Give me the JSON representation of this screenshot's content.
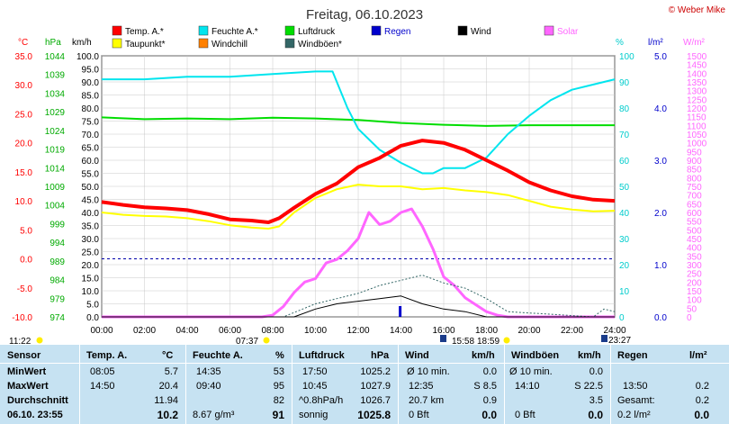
{
  "title": "Freitag, 06.10.2023",
  "copyright": "© Weber Mike",
  "legend": [
    {
      "label": "Temp. A.*",
      "color": "#ff0000"
    },
    {
      "label": "Feuchte A.*",
      "color": "#00e5ee"
    },
    {
      "label": "Luftdruck",
      "color": "#00dd00"
    },
    {
      "label": "Regen",
      "color": "#0000cc"
    },
    {
      "label": "Wind",
      "color": "#000000"
    },
    {
      "label": "Solar",
      "color": "#ff66ff"
    },
    {
      "label": "Taupunkt*",
      "color": "#ffff00"
    },
    {
      "label": "Windchill",
      "color": "#ff8000"
    },
    {
      "label": "Windböen*",
      "color": "#336666"
    }
  ],
  "axis_units": {
    "temp": "°C",
    "press": "hPa",
    "wind": "km/h",
    "hum": "%",
    "rain": "l/m²",
    "solar": "W/m²"
  },
  "chart_data": {
    "type": "line",
    "x_range": [
      0,
      24
    ],
    "x_ticks": [
      "00:00",
      "02:00",
      "04:00",
      "06:00",
      "08:00",
      "10:00",
      "12:00",
      "14:00",
      "16:00",
      "18:00",
      "20:00",
      "22:00",
      "24:00"
    ],
    "axes": {
      "temp": {
        "range": [
          -10,
          35
        ],
        "ticks": [
          "-10.0",
          "-5.0",
          "0.0",
          "5.0",
          "10.0",
          "15.0",
          "20.0",
          "25.0",
          "30.0",
          "35.0"
        ]
      },
      "pressure": {
        "range": [
          974,
          1044
        ],
        "ticks": [
          "974",
          "979",
          "984",
          "989",
          "994",
          "999",
          "1004",
          "1009",
          "1014",
          "1019",
          "1024",
          "1029",
          "1034",
          "1039",
          "1044"
        ]
      },
      "wind": {
        "range": [
          0,
          100
        ],
        "ticks": [
          "0.0",
          "5.0",
          "10.0",
          "15.0",
          "20.0",
          "25.0",
          "30.0",
          "35.0",
          "40.0",
          "45.0",
          "50.0",
          "55.0",
          "60.0",
          "65.0",
          "70.0",
          "75.0",
          "80.0",
          "85.0",
          "90.0",
          "95.0",
          "100.0"
        ]
      },
      "humidity": {
        "range": [
          0,
          100
        ],
        "ticks": [
          "0",
          "10",
          "20",
          "30",
          "40",
          "50",
          "60",
          "70",
          "80",
          "90",
          "100"
        ]
      },
      "rain": {
        "range": [
          0,
          5
        ],
        "ticks": [
          "0.0",
          "1.0",
          "2.0",
          "3.0",
          "4.0",
          "5.0"
        ]
      },
      "solar": {
        "range": [
          0,
          1500
        ],
        "ticks": [
          "0",
          "50",
          "100",
          "150",
          "200",
          "250",
          "300",
          "350",
          "400",
          "450",
          "500",
          "550",
          "600",
          "650",
          "700",
          "750",
          "800",
          "850",
          "900",
          "950",
          "1000",
          "1050",
          "1100",
          "1150",
          "1200",
          "1250",
          "1300",
          "1350",
          "1400",
          "1450",
          "1500"
        ]
      }
    },
    "series": [
      {
        "name": "Temp. A.*",
        "axis": "temp",
        "x": [
          0,
          1,
          2,
          3,
          4,
          5,
          6,
          7,
          7.8,
          8.3,
          9,
          10,
          11,
          12,
          13,
          14,
          15,
          16,
          17,
          18,
          19,
          20,
          21,
          22,
          23,
          24
        ],
        "y": [
          9.8,
          9.3,
          8.9,
          8.7,
          8.4,
          7.7,
          6.8,
          6.6,
          6.3,
          7.0,
          8.8,
          11.2,
          13.0,
          15.8,
          17.4,
          19.5,
          20.4,
          20.0,
          18.8,
          17.0,
          15.2,
          13.2,
          11.8,
          10.8,
          10.2,
          10.0
        ]
      },
      {
        "name": "Taupunkt*",
        "axis": "temp",
        "x": [
          0,
          1,
          2,
          3,
          4,
          5,
          6,
          7,
          7.8,
          8.3,
          9,
          10,
          11,
          12,
          13,
          14,
          15,
          16,
          17,
          18,
          19,
          20,
          21,
          22,
          23,
          24
        ],
        "y": [
          8.0,
          7.6,
          7.4,
          7.3,
          7.0,
          6.5,
          5.8,
          5.4,
          5.2,
          5.6,
          8.0,
          10.5,
          12.0,
          12.8,
          12.5,
          12.5,
          12.0,
          12.2,
          11.8,
          11.5,
          11.0,
          10.0,
          9.0,
          8.5,
          8.2,
          8.3
        ]
      },
      {
        "name": "Feuchte A.*",
        "axis": "humidity",
        "x": [
          0,
          2,
          4,
          6,
          8,
          10,
          10.8,
          11.5,
          12,
          13,
          14,
          15,
          15.5,
          16,
          17,
          18,
          19,
          20,
          21,
          22,
          23,
          24
        ],
        "y": [
          91,
          91,
          92,
          92,
          93,
          94,
          94,
          80,
          72,
          64,
          59,
          55,
          55,
          57,
          57,
          61,
          70,
          77,
          83,
          87,
          89,
          91
        ]
      },
      {
        "name": "Luftdruck",
        "axis": "pressure",
        "x": [
          0,
          2,
          4,
          6,
          8,
          10,
          12,
          14,
          16,
          18,
          20,
          22,
          24
        ],
        "y": [
          1027.5,
          1027.0,
          1027.2,
          1027.0,
          1027.4,
          1027.2,
          1026.8,
          1026.0,
          1025.5,
          1025.2,
          1025.4,
          1025.4,
          1025.4
        ]
      },
      {
        "name": "Wind",
        "axis": "wind",
        "x": [
          0,
          9,
          10,
          11,
          12,
          13,
          14,
          15,
          16,
          17,
          18,
          19,
          24
        ],
        "y": [
          0,
          0,
          3,
          5,
          6,
          7,
          8,
          5,
          3,
          2,
          0,
          0,
          0
        ]
      },
      {
        "name": "Windböen*",
        "axis": "wind",
        "x": [
          0,
          8.5,
          10,
          11,
          12,
          13,
          14,
          15,
          16,
          17,
          18,
          19,
          23,
          23.5,
          24
        ],
        "y": [
          0,
          0,
          5,
          7,
          9,
          12,
          14,
          16,
          13,
          11,
          7,
          2,
          0,
          3,
          2
        ]
      },
      {
        "name": "Solar",
        "axis": "solar",
        "x": [
          0,
          7.5,
          8,
          8.5,
          9,
          9.5,
          10,
          10.5,
          11,
          11.5,
          12,
          12.5,
          13,
          13.5,
          14,
          14.5,
          15,
          15.5,
          16,
          16.5,
          17,
          17.5,
          18,
          18.5,
          19,
          24
        ],
        "y": [
          0,
          0,
          10,
          60,
          140,
          200,
          220,
          310,
          330,
          380,
          450,
          600,
          530,
          550,
          600,
          620,
          520,
          390,
          230,
          180,
          110,
          70,
          30,
          10,
          0,
          0
        ]
      }
    ]
  },
  "time_marks": [
    {
      "label": "11:22",
      "type": "moon"
    },
    {
      "label": "07:37",
      "type": "sun"
    },
    {
      "label": "15:58",
      "type": "cal"
    },
    {
      "label": "18:59",
      "type": "sun"
    },
    {
      "label": "23:27",
      "type": "cal"
    }
  ],
  "table": {
    "headers": {
      "sensor": "Sensor",
      "temp": "Temp. A.",
      "temp_unit": "°C",
      "hum": "Feuchte A.",
      "hum_unit": "%",
      "press": "Luftdruck",
      "press_unit": "hPa",
      "wind": "Wind",
      "wind_unit": "km/h",
      "gust": "Windböen",
      "gust_unit": "km/h",
      "rain": "Regen",
      "rain_unit": "l/m²"
    },
    "rows": {
      "min_label": "MinWert",
      "max_label": "MaxWert",
      "avg_label": "Durchschnitt",
      "now_label": "06.10. 23:55",
      "temp_min_time": "08:05",
      "temp_min": "5.7",
      "temp_max_time": "14:50",
      "temp_max": "20.4",
      "temp_avg": "11.94",
      "temp_now": "10.2",
      "hum_min_time": "14:35",
      "hum_min": "53",
      "hum_max_time": "09:40",
      "hum_max": "95",
      "hum_avg": "82",
      "hum_abs": "8.67 g/m³",
      "hum_now": "91",
      "press_min_time": "17:50",
      "press_min": "1025.2",
      "press_max_time": "10:45",
      "press_max": "1027.9",
      "press_trend": "^0.8hPa/h",
      "press_avg": "1026.7",
      "press_weather": "sonnig",
      "press_now": "1025.8",
      "wind_r1_label": "Ø 10 min.",
      "wind_r1_val": "0.0",
      "wind_r2_time": "12:35",
      "wind_r2_val": "S 8.5",
      "wind_r3_label": "20.7 km",
      "wind_r3_val": "0.9",
      "wind_r4_label": "0 Bft",
      "wind_r4_val": "0.0",
      "gust_r1_label": "Ø 10 min.",
      "gust_r1_val": "0.0",
      "gust_r2_time": "14:10",
      "gust_r2_val": "S 22.5",
      "gust_r3_val": "3.5",
      "gust_r4_label": "0 Bft",
      "gust_r4_val": "0.0",
      "rain_r2_time": "13:50",
      "rain_r2_val": "0.2",
      "rain_r3_label": "Gesamt:",
      "rain_r3_val": "0.2",
      "rain_r4_label": "0.2 l/m²",
      "rain_r4_val": "0.0"
    }
  }
}
